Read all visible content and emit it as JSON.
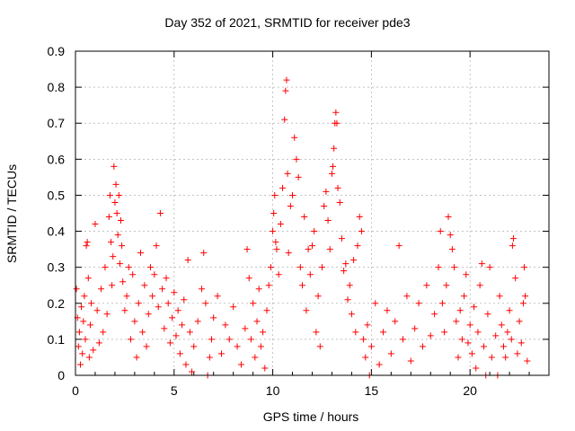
{
  "chart_data": {
    "type": "scatter",
    "title": "Day 352 of 2021, SRMTID for receiver pde3",
    "xlabel": "GPS time / hours",
    "ylabel": "SRMTID / TECUs",
    "xlim": [
      0,
      24
    ],
    "ylim": [
      0,
      0.9
    ],
    "xticks": [
      "0",
      "5",
      "10",
      "15",
      "20"
    ],
    "yticks": [
      "0",
      "0.1",
      "0.2",
      "0.3",
      "0.4",
      "0.5",
      "0.6",
      "0.7",
      "0.8",
      "0.9"
    ],
    "grid": true,
    "marker": "+",
    "series": [
      {
        "name": "SRMTID",
        "color": "#ff0000",
        "points": [
          [
            0.05,
            0.24
          ],
          [
            0.1,
            0.16
          ],
          [
            0.15,
            0.08
          ],
          [
            0.2,
            0.12
          ],
          [
            0.25,
            0.03
          ],
          [
            0.3,
            0.19
          ],
          [
            0.35,
            0.06
          ],
          [
            0.4,
            0.15
          ],
          [
            0.45,
            0.22
          ],
          [
            0.5,
            0.1
          ],
          [
            0.55,
            0.36
          ],
          [
            0.6,
            0.37
          ],
          [
            0.65,
            0.27
          ],
          [
            0.7,
            0.05
          ],
          [
            0.75,
            0.14
          ],
          [
            0.8,
            0.2
          ],
          [
            0.9,
            0.07
          ],
          [
            1.0,
            0.42
          ],
          [
            1.1,
            0.18
          ],
          [
            1.2,
            0.09
          ],
          [
            1.3,
            0.24
          ],
          [
            1.4,
            0.12
          ],
          [
            1.5,
            0.3
          ],
          [
            1.6,
            0.17
          ],
          [
            1.7,
            0.44
          ],
          [
            1.75,
            0.5
          ],
          [
            1.8,
            0.37
          ],
          [
            1.85,
            0.25
          ],
          [
            1.9,
            0.33
          ],
          [
            1.95,
            0.58
          ],
          [
            2.0,
            0.48
          ],
          [
            2.05,
            0.53
          ],
          [
            2.1,
            0.45
          ],
          [
            2.15,
            0.39
          ],
          [
            2.2,
            0.5
          ],
          [
            2.25,
            0.31
          ],
          [
            2.3,
            0.43
          ],
          [
            2.35,
            0.36
          ],
          [
            2.4,
            0.26
          ],
          [
            2.5,
            0.18
          ],
          [
            2.6,
            0.22
          ],
          [
            2.7,
            0.3
          ],
          [
            2.8,
            0.1
          ],
          [
            2.9,
            0.28
          ],
          [
            3.0,
            0.15
          ],
          [
            3.1,
            0.05
          ],
          [
            3.2,
            0.2
          ],
          [
            3.3,
            0.34
          ],
          [
            3.4,
            0.12
          ],
          [
            3.5,
            0.25
          ],
          [
            3.6,
            0.08
          ],
          [
            3.7,
            0.17
          ],
          [
            3.8,
            0.3
          ],
          [
            3.9,
            0.22
          ],
          [
            4.0,
            0.28
          ],
          [
            4.1,
            0.36
          ],
          [
            4.2,
            0.19
          ],
          [
            4.3,
            0.45
          ],
          [
            4.4,
            0.24
          ],
          [
            4.5,
            0.13
          ],
          [
            4.6,
            0.27
          ],
          [
            4.7,
            0.2
          ],
          [
            4.8,
            0.09
          ],
          [
            4.9,
            0.16
          ],
          [
            5.0,
            0.23
          ],
          [
            5.1,
            0.11
          ],
          [
            5.2,
            0.18
          ],
          [
            5.3,
            0.06
          ],
          [
            5.4,
            0.14
          ],
          [
            5.5,
            0.21
          ],
          [
            5.6,
            0.03
          ],
          [
            5.7,
            0.32
          ],
          [
            5.8,
            0.12
          ],
          [
            5.9,
            0.01
          ],
          [
            6.0,
            0.08
          ],
          [
            6.2,
            0.15
          ],
          [
            6.4,
            0.24
          ],
          [
            6.5,
            0.34
          ],
          [
            6.6,
            0.2
          ],
          [
            6.7,
            0.0
          ],
          [
            6.8,
            0.05
          ],
          [
            6.9,
            0.1
          ],
          [
            7.0,
            0.16
          ],
          [
            7.2,
            0.22
          ],
          [
            7.4,
            0.06
          ],
          [
            7.6,
            0.14
          ],
          [
            7.8,
            0.1
          ],
          [
            8.0,
            0.19
          ],
          [
            8.2,
            0.08
          ],
          [
            8.4,
            0.03
          ],
          [
            8.6,
            0.13
          ],
          [
            8.7,
            0.35
          ],
          [
            8.8,
            0.27
          ],
          [
            8.9,
            0.1
          ],
          [
            9.0,
            0.2
          ],
          [
            9.1,
            0.05
          ],
          [
            9.2,
            0.15
          ],
          [
            9.3,
            0.24
          ],
          [
            9.4,
            0.08
          ],
          [
            9.5,
            0.12
          ],
          [
            9.6,
            0.02
          ],
          [
            9.7,
            0.18
          ],
          [
            9.8,
            0.25
          ],
          [
            9.9,
            0.3
          ],
          [
            10.0,
            0.4
          ],
          [
            10.05,
            0.45
          ],
          [
            10.1,
            0.5
          ],
          [
            10.15,
            0.37
          ],
          [
            10.2,
            0.35
          ],
          [
            10.3,
            0.28
          ],
          [
            10.4,
            0.42
          ],
          [
            10.5,
            0.52
          ],
          [
            10.6,
            0.71
          ],
          [
            10.65,
            0.79
          ],
          [
            10.7,
            0.82
          ],
          [
            10.75,
            0.56
          ],
          [
            10.8,
            0.34
          ],
          [
            10.9,
            0.47
          ],
          [
            11.0,
            0.5
          ],
          [
            11.1,
            0.66
          ],
          [
            11.2,
            0.6
          ],
          [
            11.3,
            0.55
          ],
          [
            11.4,
            0.3
          ],
          [
            11.5,
            0.25
          ],
          [
            11.6,
            0.44
          ],
          [
            11.7,
            0.18
          ],
          [
            11.8,
            0.35
          ],
          [
            11.9,
            0.28
          ],
          [
            12.0,
            0.36
          ],
          [
            12.1,
            0.4
          ],
          [
            12.2,
            0.12
          ],
          [
            12.3,
            0.22
          ],
          [
            12.4,
            0.08
          ],
          [
            12.5,
            0.3
          ],
          [
            12.6,
            0.47
          ],
          [
            12.7,
            0.51
          ],
          [
            12.8,
            0.43
          ],
          [
            12.9,
            0.35
          ],
          [
            13.0,
            0.56
          ],
          [
            13.05,
            0.58
          ],
          [
            13.1,
            0.63
          ],
          [
            13.15,
            0.7
          ],
          [
            13.2,
            0.73
          ],
          [
            13.25,
            0.7
          ],
          [
            13.3,
            0.52
          ],
          [
            13.4,
            0.48
          ],
          [
            13.5,
            0.38
          ],
          [
            13.6,
            0.29
          ],
          [
            13.7,
            0.31
          ],
          [
            13.8,
            0.21
          ],
          [
            13.9,
            0.25
          ],
          [
            14.0,
            0.17
          ],
          [
            14.1,
            0.32
          ],
          [
            14.2,
            0.12
          ],
          [
            14.3,
            0.36
          ],
          [
            14.4,
            0.44
          ],
          [
            14.5,
            0.4
          ],
          [
            14.6,
            0.1
          ],
          [
            14.7,
            0.05
          ],
          [
            14.8,
            0.14
          ],
          [
            14.9,
            0.0
          ],
          [
            15.0,
            0.08
          ],
          [
            15.2,
            0.2
          ],
          [
            15.4,
            0.03
          ],
          [
            15.6,
            0.12
          ],
          [
            15.8,
            0.18
          ],
          [
            16.0,
            0.06
          ],
          [
            16.2,
            0.15
          ],
          [
            16.4,
            0.36
          ],
          [
            16.6,
            0.1
          ],
          [
            16.8,
            0.22
          ],
          [
            17.0,
            0.04
          ],
          [
            17.2,
            0.13
          ],
          [
            17.4,
            0.2
          ],
          [
            17.6,
            0.08
          ],
          [
            17.8,
            0.25
          ],
          [
            18.0,
            0.11
          ],
          [
            18.2,
            0.17
          ],
          [
            18.4,
            0.3
          ],
          [
            18.5,
            0.4
          ],
          [
            18.6,
            0.2
          ],
          [
            18.7,
            0.12
          ],
          [
            18.8,
            0.25
          ],
          [
            18.9,
            0.44
          ],
          [
            19.0,
            0.39
          ],
          [
            19.1,
            0.35
          ],
          [
            19.2,
            0.3
          ],
          [
            19.3,
            0.15
          ],
          [
            19.4,
            0.05
          ],
          [
            19.5,
            0.18
          ],
          [
            19.6,
            0.1
          ],
          [
            19.7,
            0.22
          ],
          [
            19.8,
            0.28
          ],
          [
            19.9,
            0.09
          ],
          [
            20.0,
            0.14
          ],
          [
            20.1,
            0.06
          ],
          [
            20.2,
            0.19
          ],
          [
            20.3,
            0.02
          ],
          [
            20.4,
            0.12
          ],
          [
            20.5,
            0.25
          ],
          [
            20.6,
            0.31
          ],
          [
            20.7,
            0.08
          ],
          [
            20.8,
            0.0
          ],
          [
            20.9,
            0.17
          ],
          [
            21.0,
            0.3
          ],
          [
            21.1,
            0.05
          ],
          [
            21.3,
            0.11
          ],
          [
            21.4,
            0.0
          ],
          [
            21.5,
            0.22
          ],
          [
            21.6,
            0.14
          ],
          [
            21.7,
            0.08
          ],
          [
            21.8,
            0.05
          ],
          [
            21.9,
            0.12
          ],
          [
            22.0,
            0.18
          ],
          [
            22.1,
            0.1
          ],
          [
            22.15,
            0.36
          ],
          [
            22.2,
            0.38
          ],
          [
            22.3,
            0.27
          ],
          [
            22.4,
            0.06
          ],
          [
            22.5,
            0.15
          ],
          [
            22.6,
            0.09
          ],
          [
            22.7,
            0.2
          ],
          [
            22.75,
            0.3
          ],
          [
            22.8,
            0.22
          ],
          [
            22.9,
            0.04
          ]
        ]
      }
    ]
  }
}
